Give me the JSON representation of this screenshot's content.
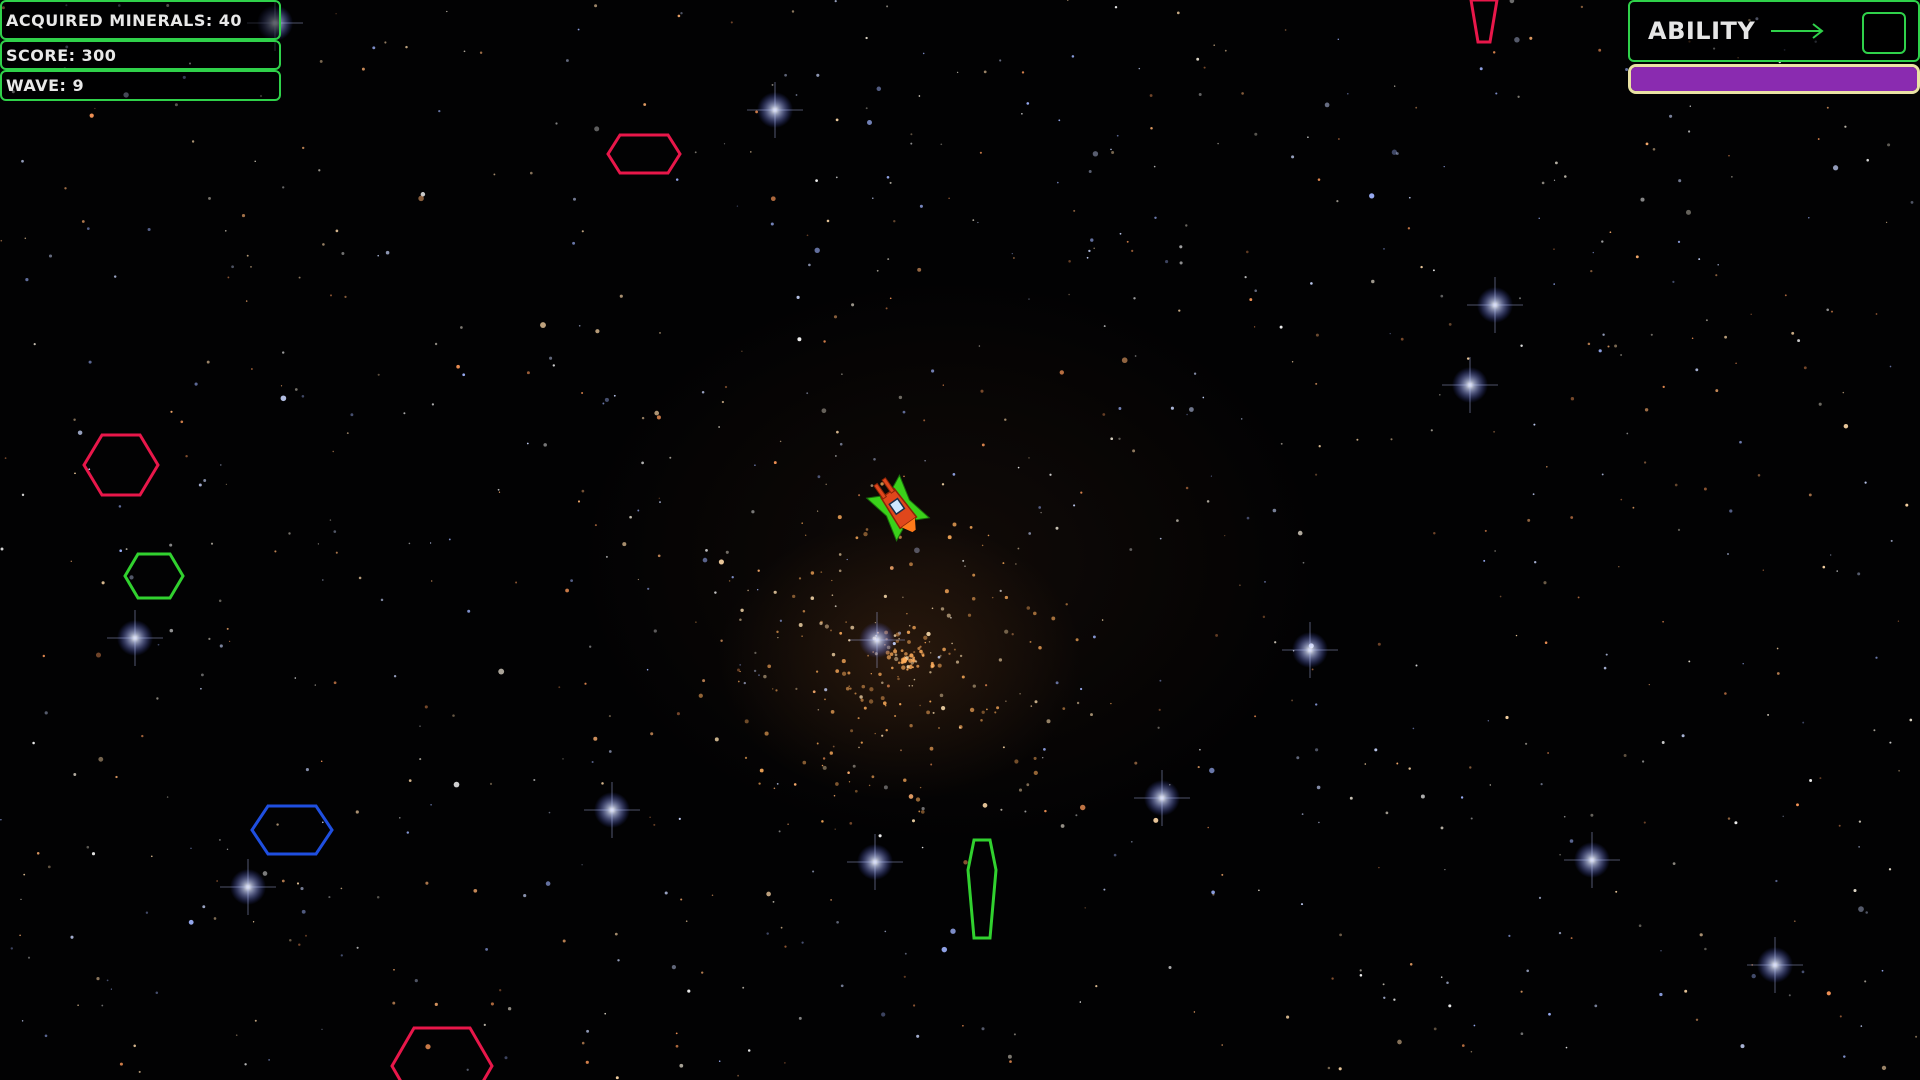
{
  "hud": {
    "minerals_label": "ACQUIRED MINERALS:",
    "minerals_value": "40",
    "score_label": "SCORE:",
    "score_value": "300",
    "wave_label": "WAVE:",
    "wave_value": "9"
  },
  "ability": {
    "label": "ABILITY",
    "arrow_icon": "arrow-right-icon",
    "charge_fraction": 1.0
  },
  "colors": {
    "hud_border": "#2fd14a",
    "ability_bar_fill": "#8a2bb0",
    "ability_bar_border": "#e9e2a4",
    "enemy_red": "#e8174a",
    "enemy_green": "#31d12f",
    "enemy_blue": "#1f4fe0",
    "ship_body": "#e0471c",
    "ship_wing": "#3ad11a"
  },
  "entities": {
    "ship_icon": "player-ship-icon",
    "enemy_icon": "hexagon-enemy-icon"
  }
}
